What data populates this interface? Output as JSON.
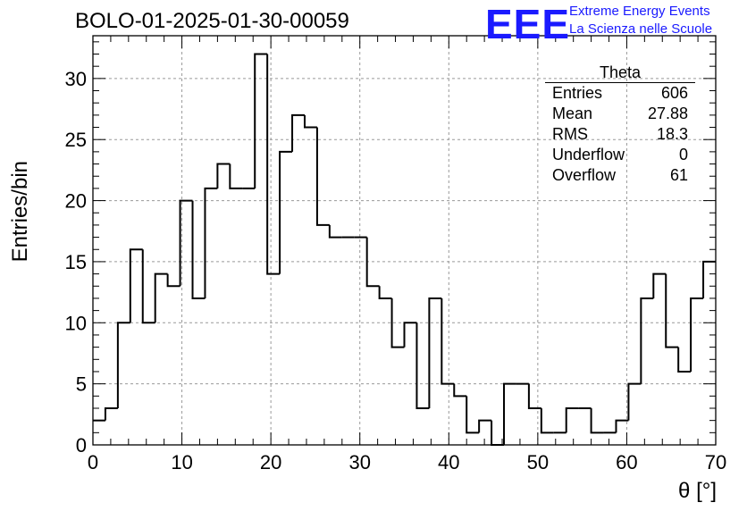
{
  "title": "BOLO-01-2025-01-30-00059",
  "logo": {
    "mark": "EEE",
    "line1": "Extreme Energy Events",
    "line2": "La Scienza nelle Scuole"
  },
  "stats_box": {
    "name": "Theta",
    "rows": [
      {
        "label": "Entries",
        "value": "606"
      },
      {
        "label": "Mean",
        "value": "27.88"
      },
      {
        "label": "RMS",
        "value": "18.3"
      },
      {
        "label": "Underflow",
        "value": "0"
      },
      {
        "label": "Overflow",
        "value": "61"
      }
    ]
  },
  "chart_data": {
    "type": "histogram",
    "title": "BOLO-01-2025-01-30-00059",
    "xlabel": "θ [°]",
    "ylabel": "Entries/bin",
    "xlim": [
      0,
      70
    ],
    "ylim": [
      0,
      33.5
    ],
    "bin_width": 1.4,
    "bin_edges_start": 0,
    "values": [
      2,
      3,
      10,
      16,
      10,
      14,
      13,
      20,
      12,
      21,
      23,
      21,
      21,
      32,
      14,
      24,
      27,
      26,
      18,
      17,
      17,
      17,
      13,
      12,
      8,
      10,
      3,
      12,
      5,
      4,
      1,
      2,
      0,
      5,
      5,
      3,
      1,
      1,
      3,
      3,
      1,
      1,
      2,
      5,
      12,
      14,
      8,
      6,
      12,
      15
    ],
    "x_ticks": [
      0,
      10,
      20,
      30,
      40,
      50,
      60,
      70
    ],
    "y_ticks": [
      0,
      5,
      10,
      15,
      20,
      25,
      30
    ],
    "grid": true,
    "line_color": "#000000",
    "grid_color": "#999999"
  }
}
